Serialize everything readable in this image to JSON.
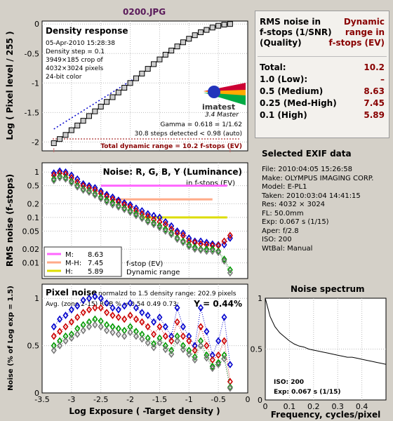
{
  "window_title": "0200.JPG",
  "summary_table": {
    "col1_header": [
      "RMS noise in",
      "f-stops (1/SNR)",
      "(Quality)"
    ],
    "col2_header": [
      "Dynamic",
      "range in",
      "f-stops (EV)"
    ],
    "rows": [
      {
        "label": "Total:",
        "value": "10.2"
      },
      {
        "label": "1.0   (Low):",
        "value": "–"
      },
      {
        "label": "0.5   (Medium)",
        "value": "8.63"
      },
      {
        "label": "0.25 (Med-High)",
        "value": "7.45"
      },
      {
        "label": "0.1   (High)",
        "value": "5.89"
      }
    ]
  },
  "exif": {
    "title": "Selected EXIF data",
    "lines": [
      "File:  2010:04:05 15:26:58",
      "Make:  OLYMPUS IMAGING CORP.",
      "Model: E-PL1",
      "Taken: 2010:03:04 14:41:15",
      "Res:   4032 × 3024",
      "FL:  50.0mm",
      "Exp:  0.067 s  (1/15)",
      "Aper:  f/2.8",
      "ISO:  200",
      "WtBal: Manual"
    ]
  },
  "colors": {
    "red": "#cc0000",
    "green": "#009900",
    "blue": "#0000cc",
    "gray": "#777777",
    "dark_red": "#880000",
    "title": "#5a1a5a"
  },
  "chart_data": [
    {
      "type": "line",
      "title": "Density response",
      "info_lines": [
        "05-Apr-2010 15:28:38",
        "Density step = 0.1",
        "3949×185 crop of",
        "4032×3024 pixels",
        "24-bit color"
      ],
      "ylabel": "Log ( Pixel level / 255 )",
      "yticks": [
        "0",
        "-0.5",
        "-1",
        "-1.5",
        "-2"
      ],
      "ylim": [
        -2.15,
        0.05
      ],
      "xlim": [
        -3.5,
        0
      ],
      "logo_text": "imatest",
      "logo_sub": "3.4  Master",
      "gamma_text": "Gamma = 0.618 = 1/1.62",
      "steps_text": "30.8 steps detected < 0.98 (auto)",
      "dr_text": "Total dynamic range = 10.2 f-stops (EV)",
      "x": [
        -3.3,
        -3.2,
        -3.1,
        -3.0,
        -2.9,
        -2.8,
        -2.7,
        -2.6,
        -2.5,
        -2.4,
        -2.3,
        -2.2,
        -2.1,
        -2.0,
        -1.9,
        -1.8,
        -1.7,
        -1.6,
        -1.5,
        -1.4,
        -1.3,
        -1.2,
        -1.1,
        -1.0,
        -0.9,
        -0.8,
        -0.7,
        -0.6,
        -0.5,
        -0.4,
        -0.3
      ],
      "y": [
        -2.02,
        -1.95,
        -1.88,
        -1.8,
        -1.72,
        -1.64,
        -1.56,
        -1.48,
        -1.4,
        -1.32,
        -1.24,
        -1.16,
        -1.08,
        -1.0,
        -0.92,
        -0.84,
        -0.76,
        -0.68,
        -0.6,
        -0.52,
        -0.45,
        -0.38,
        -0.31,
        -0.25,
        -0.19,
        -0.14,
        -0.1,
        -0.06,
        -0.03,
        -0.01,
        0.0
      ],
      "gamma_fit_x": [
        -3.3,
        -1.7
      ],
      "gamma_fit_y": [
        -1.78,
        -0.78
      ]
    },
    {
      "type": "line",
      "title": "Noise: R, G, B, Y (Luminance)",
      "subtitle": "in f-stops (EV)",
      "ylabel": "RMS noise (f-stops)",
      "yscale": "log",
      "ylim": [
        0.0045,
        1.6
      ],
      "yticks": [
        "1",
        "0.5",
        "0.2",
        "0.1",
        "0.05",
        "0.02",
        "0.01"
      ],
      "xlim": [
        -3.5,
        0
      ],
      "legend": [
        {
          "label": "M:",
          "value": "8.63",
          "color": "#ff66ff"
        },
        {
          "label": "M-H:",
          "value": "7.45",
          "color": "#ffaa88"
        },
        {
          "label": "H:",
          "value": "5.89",
          "color": "#dddd00"
        }
      ],
      "legend_notes": [
        "f-stop (EV)",
        "Dynamic range"
      ],
      "thresholds": [
        {
          "value": 0.5,
          "from": -2.5,
          "to": -0.35,
          "color": "#ff66ff"
        },
        {
          "value": 0.25,
          "from": -2.3,
          "to": -0.6,
          "color": "#ffaa88"
        },
        {
          "value": 0.1,
          "from": -1.8,
          "to": -0.35,
          "color": "#dddd00"
        }
      ],
      "x": [
        -3.3,
        -3.2,
        -3.1,
        -3.0,
        -2.9,
        -2.8,
        -2.7,
        -2.6,
        -2.5,
        -2.4,
        -2.3,
        -2.2,
        -2.1,
        -2.0,
        -1.9,
        -1.8,
        -1.7,
        -1.6,
        -1.5,
        -1.4,
        -1.3,
        -1.2,
        -1.1,
        -1.0,
        -0.9,
        -0.8,
        -0.7,
        -0.6,
        -0.5,
        -0.4,
        -0.3
      ],
      "series": [
        {
          "name": "B",
          "color": "#0000cc",
          "values": [
            0.95,
            1.05,
            1.0,
            0.85,
            0.7,
            0.55,
            0.5,
            0.45,
            0.38,
            0.32,
            0.28,
            0.24,
            0.21,
            0.19,
            0.16,
            0.14,
            0.12,
            0.11,
            0.1,
            0.08,
            0.065,
            0.05,
            0.045,
            0.035,
            0.03,
            0.03,
            0.028,
            0.026,
            0.025,
            0.025,
            0.035
          ]
        },
        {
          "name": "R",
          "color": "#cc0000",
          "values": [
            0.85,
            0.95,
            0.9,
            0.75,
            0.6,
            0.5,
            0.45,
            0.4,
            0.34,
            0.29,
            0.25,
            0.22,
            0.19,
            0.17,
            0.14,
            0.12,
            0.105,
            0.09,
            0.08,
            0.07,
            0.055,
            0.045,
            0.04,
            0.03,
            0.028,
            0.026,
            0.025,
            0.024,
            0.024,
            0.03,
            0.04
          ]
        },
        {
          "name": "G",
          "color": "#009900",
          "values": [
            0.7,
            0.8,
            0.75,
            0.62,
            0.5,
            0.42,
            0.38,
            0.33,
            0.28,
            0.24,
            0.21,
            0.18,
            0.16,
            0.14,
            0.12,
            0.1,
            0.085,
            0.075,
            0.065,
            0.055,
            0.045,
            0.035,
            0.03,
            0.025,
            0.022,
            0.02,
            0.02,
            0.02,
            0.018,
            0.012,
            0.007
          ]
        },
        {
          "name": "Y",
          "color": "#777777",
          "values": [
            0.65,
            0.75,
            0.7,
            0.58,
            0.47,
            0.4,
            0.36,
            0.31,
            0.26,
            0.22,
            0.19,
            0.17,
            0.15,
            0.13,
            0.11,
            0.095,
            0.08,
            0.07,
            0.06,
            0.05,
            0.042,
            0.033,
            0.028,
            0.023,
            0.02,
            0.019,
            0.018,
            0.018,
            0.017,
            0.011,
            0.006
          ]
        }
      ]
    },
    {
      "type": "line",
      "title": "Pixel noise",
      "info1": "normalzd to 1.5 density range: 202.9 pixels",
      "info2": "Avg. (zone 2-15) RGB % = 0.54  0.49  0.73;",
      "ybig": "Y = 0.44%",
      "ylabel": "Noise (% of Log exp = 1.5)",
      "xlabel": "Log Exposure ( -Target density )",
      "yticks": [
        "1",
        "0.5",
        "0"
      ],
      "xticks": [
        "-3.5",
        "-3",
        "-2.5",
        "-2",
        "-1.5",
        "-1",
        "-0.5",
        "0"
      ],
      "ylim": [
        0,
        1.15
      ],
      "xlim": [
        -3.5,
        0
      ],
      "x": [
        -3.3,
        -3.2,
        -3.1,
        -3.0,
        -2.9,
        -2.8,
        -2.7,
        -2.6,
        -2.5,
        -2.4,
        -2.3,
        -2.2,
        -2.1,
        -2.0,
        -1.9,
        -1.8,
        -1.7,
        -1.6,
        -1.5,
        -1.4,
        -1.3,
        -1.2,
        -1.1,
        -1.0,
        -0.9,
        -0.8,
        -0.7,
        -0.6,
        -0.5,
        -0.4,
        -0.3
      ],
      "series": [
        {
          "name": "B",
          "color": "#0000cc",
          "values": [
            0.7,
            0.78,
            0.82,
            0.88,
            0.92,
            0.98,
            1.0,
            1.02,
            1.0,
            0.95,
            0.9,
            0.88,
            0.92,
            0.95,
            0.9,
            0.85,
            0.82,
            0.75,
            0.8,
            0.7,
            0.6,
            0.9,
            0.7,
            0.6,
            0.5,
            0.9,
            0.65,
            0.4,
            0.55,
            0.8,
            0.3
          ]
        },
        {
          "name": "R",
          "color": "#cc0000",
          "values": [
            0.6,
            0.65,
            0.7,
            0.75,
            0.8,
            0.85,
            0.88,
            0.9,
            0.9,
            0.85,
            0.82,
            0.8,
            0.78,
            0.82,
            0.78,
            0.75,
            0.7,
            0.62,
            0.7,
            0.6,
            0.55,
            0.75,
            0.6,
            0.55,
            0.45,
            0.7,
            0.5,
            0.35,
            0.4,
            0.55,
            0.12
          ]
        },
        {
          "name": "G",
          "color": "#009900",
          "values": [
            0.5,
            0.55,
            0.6,
            0.62,
            0.68,
            0.72,
            0.75,
            0.78,
            0.76,
            0.72,
            0.7,
            0.68,
            0.66,
            0.7,
            0.65,
            0.62,
            0.58,
            0.52,
            0.58,
            0.5,
            0.45,
            0.6,
            0.5,
            0.45,
            0.38,
            0.55,
            0.4,
            0.28,
            0.32,
            0.4,
            0.06
          ]
        },
        {
          "name": "Y",
          "color": "#777777",
          "values": [
            0.45,
            0.5,
            0.55,
            0.58,
            0.62,
            0.66,
            0.7,
            0.72,
            0.7,
            0.66,
            0.64,
            0.62,
            0.6,
            0.64,
            0.6,
            0.57,
            0.53,
            0.48,
            0.53,
            0.46,
            0.41,
            0.55,
            0.46,
            0.41,
            0.35,
            0.5,
            0.37,
            0.26,
            0.3,
            0.36,
            0.05
          ]
        }
      ]
    },
    {
      "type": "line",
      "title": "Noise spectrum",
      "xlabel": "Frequency, cycles/pixel",
      "xticks": [
        "0",
        "0.1",
        "0.2",
        "0.3",
        "0.4"
      ],
      "yticks": [
        "1",
        "0.5",
        "0"
      ],
      "xlim": [
        0,
        0.5
      ],
      "ylim": [
        0,
        1.0
      ],
      "iso_text": "ISO:   200",
      "exp_text": "Exp:   0.067 s  (1/15)",
      "x": [
        0,
        0.02,
        0.04,
        0.06,
        0.08,
        0.1,
        0.12,
        0.14,
        0.16,
        0.18,
        0.2,
        0.22,
        0.24,
        0.26,
        0.28,
        0.3,
        0.32,
        0.34,
        0.36,
        0.38,
        0.4,
        0.42,
        0.44,
        0.46,
        0.48,
        0.5
      ],
      "y": [
        1.0,
        0.82,
        0.72,
        0.66,
        0.62,
        0.58,
        0.55,
        0.53,
        0.52,
        0.5,
        0.49,
        0.48,
        0.47,
        0.46,
        0.45,
        0.44,
        0.43,
        0.42,
        0.42,
        0.41,
        0.4,
        0.39,
        0.38,
        0.37,
        0.36,
        0.35
      ]
    }
  ]
}
